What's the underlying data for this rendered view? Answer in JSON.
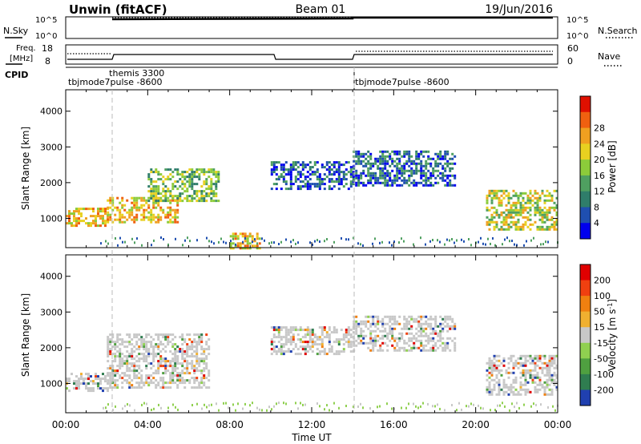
{
  "header": {
    "station": "Unwin (fitACF)",
    "beam": "Beam 01",
    "date": "19/Jun/2016"
  },
  "panels": {
    "nsky_label": "N.Sky",
    "nsearch_label": "N.Search",
    "freq_label_1": "Freq.",
    "freq_label_2": "[MHz]",
    "nave_label": "Nave",
    "cpid_label": "CPID",
    "nsky_ticks": [
      "10^5",
      "10^0"
    ],
    "nsearch_ticks": [
      "10^5",
      "10^0"
    ],
    "freq_ticks": [
      "18",
      "8"
    ],
    "nave_ticks": [
      "60",
      "0"
    ],
    "cpid_labels": [
      {
        "text": "themis 3300",
        "hour": 2.0,
        "row": 0
      },
      {
        "text": "tbjmode7pulse -8600",
        "hour": 0.0,
        "row": 1
      },
      {
        "text": "tbjmode7pulse -8600",
        "hour": 14.0,
        "row": 1
      }
    ]
  },
  "chart_data": [
    {
      "type": "heatmap",
      "title": "Power",
      "ylabel": "Slant Range [km]",
      "colorbar_label": "Power [dB]",
      "ylim": [
        180,
        4600
      ],
      "xlim": [
        0,
        24
      ],
      "yticks": [
        "1000",
        "2000",
        "3000",
        "4000"
      ],
      "colorbar_ticks": [
        "4",
        "8",
        "12",
        "16",
        "20",
        "24",
        "28"
      ],
      "colorbar_colors": [
        "#0000ee",
        "#1f4fb0",
        "#2f7d6a",
        "#4fa060",
        "#8ccb3a",
        "#e8d020",
        "#f0a020",
        "#f06010",
        "#e01000"
      ],
      "echo_regions": [
        {
          "t0": 0.0,
          "t1": 2.0,
          "r0": 800,
          "r1": 1300,
          "level": 28
        },
        {
          "t0": 2.0,
          "t1": 5.5,
          "r0": 900,
          "r1": 1600,
          "level": 28
        },
        {
          "t0": 4.0,
          "t1": 7.5,
          "r0": 1500,
          "r1": 2400,
          "level": 20
        },
        {
          "t0": 8.0,
          "t1": 9.5,
          "r0": 180,
          "r1": 600,
          "level": 28
        },
        {
          "t0": 10.0,
          "t1": 14.0,
          "r0": 1800,
          "r1": 2600,
          "level": 12
        },
        {
          "t0": 14.0,
          "t1": 19.0,
          "r0": 1900,
          "r1": 2900,
          "level": 12
        },
        {
          "t0": 20.5,
          "t1": 24.0,
          "r0": 700,
          "r1": 1800,
          "level": 24
        }
      ]
    },
    {
      "type": "heatmap",
      "title": "Velocity",
      "ylabel": "Slant Range [km]",
      "xlabel": "Time UT",
      "colorbar_label": "Velocity [m s^-1]",
      "ylim": [
        180,
        4600
      ],
      "xlim": [
        0,
        24
      ],
      "yticks": [
        "1000",
        "2000",
        "3000",
        "4000"
      ],
      "xticks": [
        "00:00",
        "04:00",
        "08:00",
        "12:00",
        "16:00",
        "20:00",
        "00:00"
      ],
      "colorbar_ticks": [
        "200",
        "100",
        "50",
        "15",
        "-15",
        "-50",
        "-100",
        "-200"
      ],
      "colorbar_colors": [
        "#2040b0",
        "#2f7d50",
        "#4fa040",
        "#90d050",
        "#c8c8c8",
        "#f0b030",
        "#f08010",
        "#f04010",
        "#e00000"
      ],
      "echo_regions": [
        {
          "t0": 0.0,
          "t1": 2.0,
          "r0": 800,
          "r1": 1300,
          "velocity": 0
        },
        {
          "t0": 2.0,
          "t1": 7.0,
          "r0": 900,
          "r1": 2400,
          "velocity": 0
        },
        {
          "t0": 10.0,
          "t1": 14.0,
          "r0": 1800,
          "r1": 2600,
          "velocity": -30
        },
        {
          "t0": 14.0,
          "t1": 19.0,
          "r0": 1900,
          "r1": 2900,
          "velocity": -20
        },
        {
          "t0": 20.5,
          "t1": 24.0,
          "r0": 700,
          "r1": 1800,
          "velocity": 20
        }
      ]
    }
  ]
}
